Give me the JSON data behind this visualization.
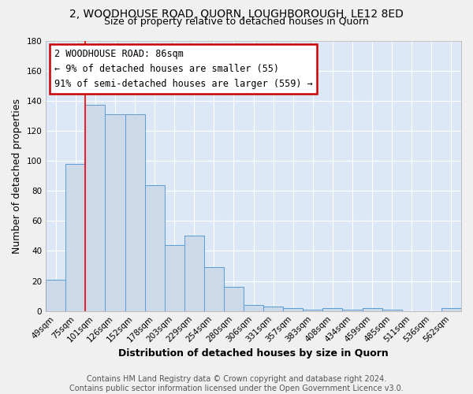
{
  "title": "2, WOODHOUSE ROAD, QUORN, LOUGHBOROUGH, LE12 8ED",
  "subtitle": "Size of property relative to detached houses in Quorn",
  "xlabel": "Distribution of detached houses by size in Quorn",
  "ylabel": "Number of detached properties",
  "bar_labels": [
    "49sqm",
    "75sqm",
    "101sqm",
    "126sqm",
    "152sqm",
    "178sqm",
    "203sqm",
    "229sqm",
    "254sqm",
    "280sqm",
    "306sqm",
    "331sqm",
    "357sqm",
    "383sqm",
    "408sqm",
    "434sqm",
    "459sqm",
    "485sqm",
    "511sqm",
    "536sqm",
    "562sqm"
  ],
  "bar_values": [
    21,
    98,
    137,
    131,
    131,
    84,
    44,
    50,
    29,
    16,
    4,
    3,
    2,
    1,
    2,
    1,
    2,
    1,
    0,
    0,
    2
  ],
  "bar_color": "#ccd9e8",
  "bar_edge_color": "#5b9bd5",
  "red_line_x": 1.5,
  "annotation_line1": "2 WOODHOUSE ROAD: 86sqm",
  "annotation_line2": "← 9% of detached houses are smaller (55)",
  "annotation_line3": "91% of semi-detached houses are larger (559) →",
  "annotation_box_color": "#ffffff",
  "annotation_box_edge": "#cc0000",
  "ylim": [
    0,
    180
  ],
  "yticks": [
    0,
    20,
    40,
    60,
    80,
    100,
    120,
    140,
    160,
    180
  ],
  "footer_text": "Contains HM Land Registry data © Crown copyright and database right 2024.\nContains public sector information licensed under the Open Government Licence v3.0.",
  "bg_color": "#f0f0f0",
  "plot_bg_color": "#dce8f5",
  "grid_color": "#ffffff",
  "title_fontsize": 10,
  "subtitle_fontsize": 9,
  "axis_label_fontsize": 9,
  "tick_fontsize": 7.5,
  "footer_fontsize": 7,
  "annot_fontsize": 8.5
}
